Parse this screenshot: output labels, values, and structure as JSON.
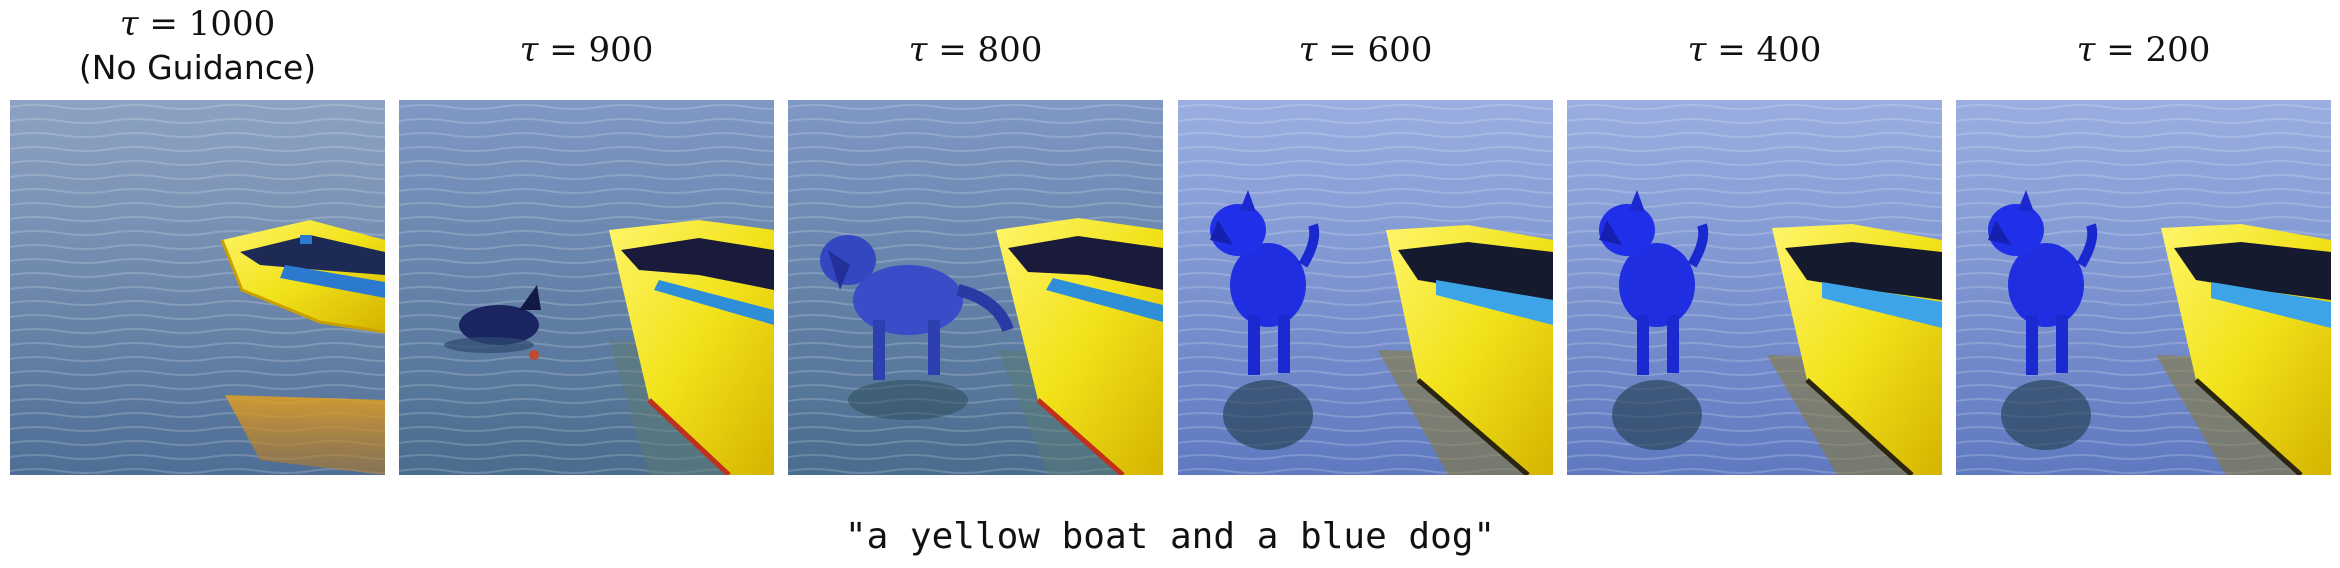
{
  "panels": [
    {
      "tau_symbol": "τ",
      "tau_value": "= 1000",
      "subtitle": "(No Guidance)"
    },
    {
      "tau_symbol": "τ",
      "tau_value": "= 900"
    },
    {
      "tau_symbol": "τ",
      "tau_value": "= 800"
    },
    {
      "tau_symbol": "τ",
      "tau_value": "= 600"
    },
    {
      "tau_symbol": "τ",
      "tau_value": "= 400"
    },
    {
      "tau_symbol": "τ",
      "tau_value": "= 200"
    }
  ],
  "caption": "\"a yellow boat and a blue dog\"",
  "colors": {
    "water_light": "#8fa6c8",
    "water_dark": "#4a6a9a",
    "boat_yellow": "#f2e21a",
    "dog_blue": "#2536c9"
  }
}
